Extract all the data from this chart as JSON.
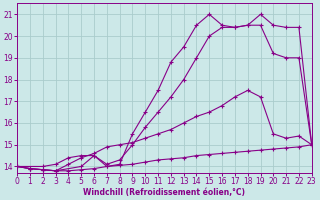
{
  "xlabel": "Windchill (Refroidissement éolien,°C)",
  "bg_color": "#cce8e8",
  "grid_color": "#aacccc",
  "line_color": "#880088",
  "x_ticks": [
    0,
    1,
    2,
    3,
    4,
    5,
    6,
    7,
    8,
    9,
    10,
    11,
    12,
    13,
    14,
    15,
    16,
    17,
    18,
    19,
    20,
    21,
    22,
    23
  ],
  "y_ticks": [
    14,
    15,
    16,
    17,
    18,
    19,
    20,
    21
  ],
  "xlim": [
    0,
    23
  ],
  "ylim": [
    13.7,
    21.5
  ],
  "lines": [
    {
      "x": [
        0,
        1,
        2,
        3,
        4,
        5,
        6,
        7,
        8,
        9,
        10,
        11,
        12,
        13,
        14,
        15,
        16,
        17,
        18,
        19,
        20,
        21,
        22,
        23
      ],
      "y": [
        14.0,
        13.9,
        13.85,
        13.8,
        13.8,
        13.85,
        13.9,
        14.0,
        14.05,
        14.1,
        14.2,
        14.3,
        14.35,
        14.4,
        14.5,
        14.55,
        14.6,
        14.65,
        14.7,
        14.75,
        14.8,
        14.85,
        14.9,
        15.0
      ]
    },
    {
      "x": [
        0,
        1,
        2,
        3,
        4,
        5,
        6,
        7,
        8,
        9,
        10,
        11,
        12,
        13,
        14,
        15,
        16,
        17,
        18,
        19,
        20,
        21,
        22,
        23
      ],
      "y": [
        14.0,
        13.9,
        13.85,
        13.8,
        14.1,
        14.4,
        14.6,
        14.9,
        15.0,
        15.1,
        15.3,
        15.5,
        15.7,
        16.0,
        16.3,
        16.5,
        16.8,
        17.2,
        17.5,
        17.2,
        15.5,
        15.3,
        15.4,
        15.0
      ]
    },
    {
      "x": [
        0,
        2,
        3,
        4,
        5,
        6,
        7,
        8,
        9,
        10,
        11,
        12,
        13,
        14,
        15,
        16,
        17,
        18,
        19,
        20,
        21,
        22,
        23
      ],
      "y": [
        14.0,
        14.0,
        14.1,
        14.4,
        14.5,
        14.5,
        14.1,
        14.3,
        15.0,
        15.8,
        16.5,
        17.2,
        18.0,
        19.0,
        20.0,
        20.4,
        20.4,
        20.5,
        20.5,
        19.2,
        19.0,
        19.0,
        15.0
      ]
    },
    {
      "x": [
        0,
        1,
        2,
        3,
        5,
        6,
        7,
        8,
        9,
        10,
        11,
        12,
        13,
        14,
        15,
        16,
        17,
        18,
        19,
        20,
        21,
        22,
        23
      ],
      "y": [
        14.0,
        13.9,
        13.85,
        13.8,
        14.0,
        14.5,
        14.0,
        14.1,
        15.5,
        16.5,
        17.5,
        18.8,
        19.5,
        20.5,
        21.0,
        20.5,
        20.4,
        20.5,
        21.0,
        20.5,
        20.4,
        20.4,
        15.0
      ]
    }
  ]
}
